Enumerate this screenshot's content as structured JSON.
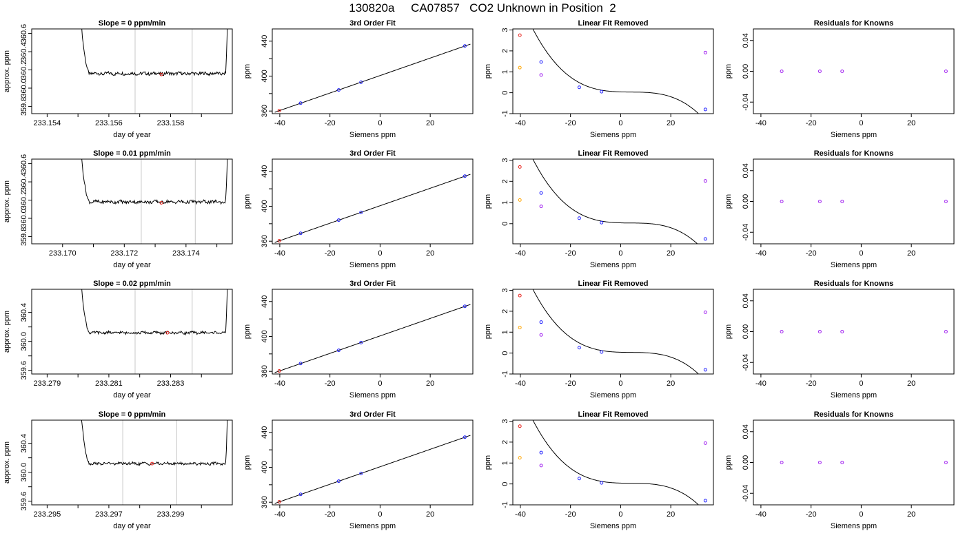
{
  "title": "130820a     CA07857   CO2 Unknown in Position  2",
  "colors": {
    "trace": "#000000",
    "fit": "#000000",
    "vline": "#c8c8c8",
    "red": "#e8231d",
    "blue": "#2020ff",
    "orange": "#ffa500",
    "purple": "#a020f0",
    "axis": "#000000"
  },
  "chart_data": [
    {
      "type": "line",
      "row": 0,
      "col": 0,
      "title": "Slope =  0  ppm/min",
      "xlabel": "day of year",
      "ylabel": "approx. ppm",
      "xlim": [
        233.1535,
        233.16
      ],
      "ylim": [
        359.72,
        360.65
      ],
      "xticks": [
        233.154,
        233.155,
        233.156,
        233.157,
        233.158,
        233.159
      ],
      "xtick_labels": [
        "233.154",
        "",
        "233.156",
        "",
        "233.158",
        ""
      ],
      "yticks": [
        359.8,
        360.0,
        360.2,
        360.4,
        360.6
      ],
      "ytick_labels": [
        "359.8",
        "360.0",
        "360.2",
        "360.4",
        "360.6"
      ],
      "trace": {
        "x_start": 233.1551,
        "x_end": 233.15985,
        "base": 360.16,
        "left_top": 360.65,
        "right_top": 360.65
      },
      "vlines": [
        233.15685,
        233.1587
      ],
      "marker": {
        "x": 233.1577,
        "y": 360.15,
        "color": "red"
      }
    },
    {
      "type": "scatter",
      "row": 0,
      "col": 1,
      "title": "3rd Order Fit",
      "xlabel": "Siemens ppm",
      "ylabel": "ppm",
      "xlim": [
        -43,
        37
      ],
      "ylim": [
        357,
        454
      ],
      "xticks": [
        -40,
        -20,
        0,
        20
      ],
      "xtick_labels": [
        "-40",
        "-20",
        "0",
        "20"
      ],
      "yticks": [
        360,
        380,
        400,
        420,
        440
      ],
      "ytick_labels": [
        "360",
        "",
        "400",
        "",
        "440"
      ],
      "curve": {
        "type": "linear",
        "slope": 1.0,
        "intercept": 400.6
      },
      "points": [
        {
          "x": -40.2,
          "y": 360.5,
          "color": "red"
        },
        {
          "x": -31.7,
          "y": 369.0,
          "color": "blue"
        },
        {
          "x": -16.5,
          "y": 384.1,
          "color": "blue"
        },
        {
          "x": -7.6,
          "y": 393.0,
          "color": "blue"
        },
        {
          "x": 33.8,
          "y": 434.5,
          "color": "blue"
        }
      ]
    },
    {
      "type": "scatter",
      "row": 0,
      "col": 2,
      "title": "Linear Fit Removed",
      "xlabel": "Siemens ppm",
      "ylabel": "ppm",
      "xlim": [
        -43,
        37
      ],
      "ylim": [
        -1.0,
        3.05
      ],
      "xticks": [
        -40,
        -20,
        0,
        20
      ],
      "xtick_labels": [
        "-40",
        "-20",
        "0",
        "20"
      ],
      "yticks": [
        -1,
        0,
        1,
        2,
        3
      ],
      "ytick_labels": [
        "-1",
        "0",
        "1",
        "2",
        "3"
      ],
      "curve": {
        "type": "cubic",
        "coef": [
          0.0126,
          0.00039,
          -2.95e-05,
          4.4e-09
        ]
      },
      "points": [
        {
          "x": -40.2,
          "y": 2.75,
          "color": "red"
        },
        {
          "x": -31.7,
          "y": 1.47,
          "color": "blue"
        },
        {
          "x": -16.5,
          "y": 0.26,
          "color": "blue"
        },
        {
          "x": -7.6,
          "y": 0.05,
          "color": "blue"
        },
        {
          "x": 33.8,
          "y": -0.8,
          "color": "blue"
        },
        {
          "x": -40.2,
          "y": 1.2,
          "color": "orange"
        },
        {
          "x": -31.7,
          "y": 0.85,
          "color": "purple"
        },
        {
          "x": 33.8,
          "y": 1.92,
          "color": "purple"
        }
      ]
    },
    {
      "type": "scatter",
      "row": 0,
      "col": 3,
      "title": "Residuals for Knowns",
      "xlabel": "Siemens ppm",
      "ylabel": "ppm",
      "xlim": [
        -43,
        37
      ],
      "ylim": [
        -0.055,
        0.055
      ],
      "xticks": [
        -40,
        -20,
        0,
        20
      ],
      "xtick_labels": [
        "-40",
        "-20",
        "0",
        "20"
      ],
      "yticks": [
        -0.04,
        0,
        0.04
      ],
      "ytick_labels": [
        "-0.04",
        "0.00",
        "0.04"
      ],
      "points": [
        {
          "x": -31.7,
          "y": 0,
          "color": "purple"
        },
        {
          "x": -16.5,
          "y": 0,
          "color": "purple"
        },
        {
          "x": -7.6,
          "y": 0,
          "color": "purple"
        },
        {
          "x": 33.8,
          "y": 0,
          "color": "purple"
        }
      ]
    },
    {
      "type": "line",
      "row": 1,
      "col": 0,
      "title": "Slope =  0.01  ppm/min",
      "xlabel": "day of year",
      "ylabel": "approx. ppm",
      "xlim": [
        233.169,
        233.1755
      ],
      "ylim": [
        359.72,
        360.65
      ],
      "xticks": [
        233.17,
        233.171,
        233.172,
        233.173,
        233.174,
        233.175
      ],
      "xtick_labels": [
        "233.170",
        "",
        "233.172",
        "",
        "233.174",
        ""
      ],
      "yticks": [
        359.8,
        360.0,
        360.2,
        360.4,
        360.6
      ],
      "ytick_labels": [
        "359.8",
        "360.0",
        "360.2",
        "360.4",
        "360.6"
      ],
      "trace": {
        "x_start": 233.1706,
        "x_end": 233.17535,
        "base": 360.18,
        "left_top": 360.65,
        "right_top": 360.65
      },
      "vlines": [
        233.17255,
        233.1743
      ],
      "marker": {
        "x": 233.1732,
        "y": 360.17,
        "color": "red"
      }
    },
    {
      "type": "scatter",
      "row": 1,
      "col": 1,
      "title": "3rd Order Fit",
      "xlabel": "Siemens ppm",
      "ylabel": "ppm",
      "xlim": [
        -43,
        37
      ],
      "ylim": [
        357,
        454
      ],
      "xticks": [
        -40,
        -20,
        0,
        20
      ],
      "xtick_labels": [
        "-40",
        "-20",
        "0",
        "20"
      ],
      "yticks": [
        360,
        380,
        400,
        420,
        440
      ],
      "ytick_labels": [
        "360",
        "",
        "400",
        "",
        "440"
      ],
      "curve": {
        "type": "linear",
        "slope": 1.0,
        "intercept": 400.6
      },
      "points": [
        {
          "x": -40.2,
          "y": 360.5,
          "color": "red"
        },
        {
          "x": -31.7,
          "y": 369.0,
          "color": "blue"
        },
        {
          "x": -16.5,
          "y": 384.1,
          "color": "blue"
        },
        {
          "x": -7.6,
          "y": 393.0,
          "color": "blue"
        },
        {
          "x": 33.8,
          "y": 434.5,
          "color": "blue"
        }
      ]
    },
    {
      "type": "scatter",
      "row": 1,
      "col": 2,
      "title": "Linear Fit Removed",
      "xlabel": "Siemens ppm",
      "ylabel": "ppm",
      "xlim": [
        -43,
        37
      ],
      "ylim": [
        -0.95,
        3.05
      ],
      "xticks": [
        -40,
        -20,
        0,
        20
      ],
      "xtick_labels": [
        "-40",
        "-20",
        "0",
        "20"
      ],
      "yticks": [
        0,
        1,
        2,
        3
      ],
      "ytick_labels": [
        "0",
        "1",
        "2",
        "3"
      ],
      "curve": {
        "type": "cubic",
        "coef": [
          0.0126,
          0.00039,
          -2.95e-05,
          4.4e-09
        ]
      },
      "points": [
        {
          "x": -40.2,
          "y": 2.68,
          "color": "red"
        },
        {
          "x": -31.7,
          "y": 1.45,
          "color": "blue"
        },
        {
          "x": -16.5,
          "y": 0.26,
          "color": "blue"
        },
        {
          "x": -7.6,
          "y": 0.05,
          "color": "blue"
        },
        {
          "x": 33.8,
          "y": -0.72,
          "color": "blue"
        },
        {
          "x": -40.2,
          "y": 1.12,
          "color": "orange"
        },
        {
          "x": -31.7,
          "y": 0.82,
          "color": "purple"
        },
        {
          "x": 33.8,
          "y": 2.02,
          "color": "purple"
        }
      ]
    },
    {
      "type": "scatter",
      "row": 1,
      "col": 3,
      "title": "Residuals for Knowns",
      "xlabel": "Siemens ppm",
      "ylabel": "ppm",
      "xlim": [
        -43,
        37
      ],
      "ylim": [
        -0.055,
        0.055
      ],
      "xticks": [
        -40,
        -20,
        0,
        20
      ],
      "xtick_labels": [
        "-40",
        "-20",
        "0",
        "20"
      ],
      "yticks": [
        -0.04,
        0,
        0.04
      ],
      "ytick_labels": [
        "-0.04",
        "0.00",
        "0.04"
      ],
      "points": [
        {
          "x": -31.7,
          "y": 0,
          "color": "purple"
        },
        {
          "x": -16.5,
          "y": 0,
          "color": "purple"
        },
        {
          "x": -7.6,
          "y": 0,
          "color": "purple"
        },
        {
          "x": 33.8,
          "y": 0,
          "color": "purple"
        }
      ]
    },
    {
      "type": "line",
      "row": 2,
      "col": 0,
      "title": "Slope =  0.02  ppm/min",
      "xlabel": "day of year",
      "ylabel": "approx. ppm",
      "xlim": [
        233.2785,
        233.285
      ],
      "ylim": [
        359.55,
        360.72
      ],
      "xticks": [
        233.279,
        233.28,
        233.281,
        233.282,
        233.283,
        233.284
      ],
      "xtick_labels": [
        "233.279",
        "",
        "233.281",
        "",
        "233.283",
        ""
      ],
      "yticks": [
        359.6,
        359.8,
        360.0,
        360.2,
        360.4
      ],
      "ytick_labels": [
        "359.6",
        "",
        "360.0",
        "",
        "360.4"
      ],
      "trace": {
        "x_start": 233.2801,
        "x_end": 233.28485,
        "base": 360.12,
        "left_top": 360.72,
        "right_top": 360.72
      },
      "vlines": [
        233.28185,
        233.2837
      ],
      "marker": {
        "x": 233.2829,
        "y": 360.12,
        "color": "red"
      }
    },
    {
      "type": "scatter",
      "row": 2,
      "col": 1,
      "title": "3rd Order Fit",
      "xlabel": "Siemens ppm",
      "ylabel": "ppm",
      "xlim": [
        -43,
        37
      ],
      "ylim": [
        357,
        454
      ],
      "xticks": [
        -40,
        -20,
        0,
        20
      ],
      "xtick_labels": [
        "-40",
        "-20",
        "0",
        "20"
      ],
      "yticks": [
        360,
        380,
        400,
        420,
        440
      ],
      "ytick_labels": [
        "360",
        "",
        "400",
        "",
        "440"
      ],
      "curve": {
        "type": "linear",
        "slope": 1.0,
        "intercept": 400.6
      },
      "points": [
        {
          "x": -40.2,
          "y": 360.5,
          "color": "red"
        },
        {
          "x": -31.7,
          "y": 369.0,
          "color": "blue"
        },
        {
          "x": -16.5,
          "y": 384.1,
          "color": "blue"
        },
        {
          "x": -7.6,
          "y": 393.0,
          "color": "blue"
        },
        {
          "x": 33.8,
          "y": 434.5,
          "color": "blue"
        }
      ]
    },
    {
      "type": "scatter",
      "row": 2,
      "col": 2,
      "title": "Linear Fit Removed",
      "xlabel": "Siemens ppm",
      "ylabel": "ppm",
      "xlim": [
        -43,
        37
      ],
      "ylim": [
        -1.0,
        3.05
      ],
      "xticks": [
        -40,
        -20,
        0,
        20
      ],
      "xtick_labels": [
        "-40",
        "-20",
        "0",
        "20"
      ],
      "yticks": [
        -1,
        0,
        1,
        2,
        3
      ],
      "ytick_labels": [
        "-1",
        "0",
        "1",
        "2",
        "3"
      ],
      "curve": {
        "type": "cubic",
        "coef": [
          0.0126,
          0.00039,
          -2.95e-05,
          4.4e-09
        ]
      },
      "points": [
        {
          "x": -40.2,
          "y": 2.75,
          "color": "red"
        },
        {
          "x": -31.7,
          "y": 1.48,
          "color": "blue"
        },
        {
          "x": -16.5,
          "y": 0.26,
          "color": "blue"
        },
        {
          "x": -7.6,
          "y": 0.05,
          "color": "blue"
        },
        {
          "x": 33.8,
          "y": -0.8,
          "color": "blue"
        },
        {
          "x": -40.2,
          "y": 1.22,
          "color": "orange"
        },
        {
          "x": -31.7,
          "y": 0.87,
          "color": "purple"
        },
        {
          "x": 33.8,
          "y": 1.95,
          "color": "purple"
        }
      ]
    },
    {
      "type": "scatter",
      "row": 2,
      "col": 3,
      "title": "Residuals for Knowns",
      "xlabel": "Siemens ppm",
      "ylabel": "ppm",
      "xlim": [
        -43,
        37
      ],
      "ylim": [
        -0.055,
        0.055
      ],
      "xticks": [
        -40,
        -20,
        0,
        20
      ],
      "xtick_labels": [
        "-40",
        "-20",
        "0",
        "20"
      ],
      "yticks": [
        -0.04,
        0,
        0.04
      ],
      "ytick_labels": [
        "-0.04",
        "0.00",
        "0.04"
      ],
      "points": [
        {
          "x": -31.7,
          "y": 0,
          "color": "purple"
        },
        {
          "x": -16.5,
          "y": 0,
          "color": "purple"
        },
        {
          "x": -7.6,
          "y": 0,
          "color": "purple"
        },
        {
          "x": 33.8,
          "y": 0,
          "color": "purple"
        }
      ]
    },
    {
      "type": "line",
      "row": 3,
      "col": 0,
      "title": "Slope =  0  ppm/min",
      "xlabel": "day of year",
      "ylabel": "approx. ppm",
      "xlim": [
        233.2945,
        233.301
      ],
      "ylim": [
        359.55,
        360.72
      ],
      "xticks": [
        233.295,
        233.296,
        233.297,
        233.298,
        233.299,
        233.3
      ],
      "xtick_labels": [
        "233.295",
        "",
        "233.297",
        "",
        "233.299",
        ""
      ],
      "yticks": [
        359.6,
        359.8,
        360.0,
        360.2,
        360.4
      ],
      "ytick_labels": [
        "359.6",
        "",
        "360.0",
        "",
        "360.4"
      ],
      "trace": {
        "x_start": 233.2961,
        "x_end": 233.30085,
        "base": 360.12,
        "left_top": 360.72,
        "right_top": 360.72
      },
      "vlines": [
        233.29745,
        233.2992
      ],
      "marker": {
        "x": 233.2984,
        "y": 360.12,
        "color": "red"
      }
    },
    {
      "type": "scatter",
      "row": 3,
      "col": 1,
      "title": "3rd Order Fit",
      "xlabel": "Siemens ppm",
      "ylabel": "ppm",
      "xlim": [
        -43,
        37
      ],
      "ylim": [
        357,
        454
      ],
      "xticks": [
        -40,
        -20,
        0,
        20
      ],
      "xtick_labels": [
        "-40",
        "-20",
        "0",
        "20"
      ],
      "yticks": [
        360,
        380,
        400,
        420,
        440
      ],
      "ytick_labels": [
        "360",
        "",
        "400",
        "",
        "440"
      ],
      "curve": {
        "type": "linear",
        "slope": 1.0,
        "intercept": 400.6
      },
      "points": [
        {
          "x": -40.2,
          "y": 360.5,
          "color": "red"
        },
        {
          "x": -31.7,
          "y": 369.0,
          "color": "blue"
        },
        {
          "x": -16.5,
          "y": 384.1,
          "color": "blue"
        },
        {
          "x": -7.6,
          "y": 393.0,
          "color": "blue"
        },
        {
          "x": 33.8,
          "y": 434.5,
          "color": "blue"
        }
      ]
    },
    {
      "type": "scatter",
      "row": 3,
      "col": 2,
      "title": "Linear Fit Removed",
      "xlabel": "Siemens ppm",
      "ylabel": "ppm",
      "xlim": [
        -43,
        37
      ],
      "ylim": [
        -1.0,
        3.05
      ],
      "xticks": [
        -40,
        -20,
        0,
        20
      ],
      "xtick_labels": [
        "-40",
        "-20",
        "0",
        "20"
      ],
      "yticks": [
        -1,
        0,
        1,
        2,
        3
      ],
      "ytick_labels": [
        "-1",
        "0",
        "1",
        "2",
        "3"
      ],
      "curve": {
        "type": "cubic",
        "coef": [
          0.0126,
          0.00039,
          -2.95e-05,
          4.4e-09
        ]
      },
      "points": [
        {
          "x": -40.2,
          "y": 2.76,
          "color": "red"
        },
        {
          "x": -31.7,
          "y": 1.5,
          "color": "blue"
        },
        {
          "x": -16.5,
          "y": 0.26,
          "color": "blue"
        },
        {
          "x": -7.6,
          "y": 0.05,
          "color": "blue"
        },
        {
          "x": 33.8,
          "y": -0.8,
          "color": "blue"
        },
        {
          "x": -40.2,
          "y": 1.25,
          "color": "orange"
        },
        {
          "x": -31.7,
          "y": 0.88,
          "color": "purple"
        },
        {
          "x": 33.8,
          "y": 1.95,
          "color": "purple"
        }
      ]
    },
    {
      "type": "scatter",
      "row": 3,
      "col": 3,
      "title": "Residuals for Knowns",
      "xlabel": "Siemens ppm",
      "ylabel": "ppm",
      "xlim": [
        -43,
        37
      ],
      "ylim": [
        -0.055,
        0.055
      ],
      "xticks": [
        -40,
        -20,
        0,
        20
      ],
      "xtick_labels": [
        "-40",
        "-20",
        "0",
        "20"
      ],
      "yticks": [
        -0.04,
        0,
        0.04
      ],
      "ytick_labels": [
        "-0.04",
        "0.00",
        "0.04"
      ],
      "points": [
        {
          "x": -31.7,
          "y": 0,
          "color": "purple"
        },
        {
          "x": -16.5,
          "y": 0,
          "color": "purple"
        },
        {
          "x": -7.6,
          "y": 0,
          "color": "purple"
        },
        {
          "x": 33.8,
          "y": 0,
          "color": "purple"
        }
      ]
    }
  ]
}
